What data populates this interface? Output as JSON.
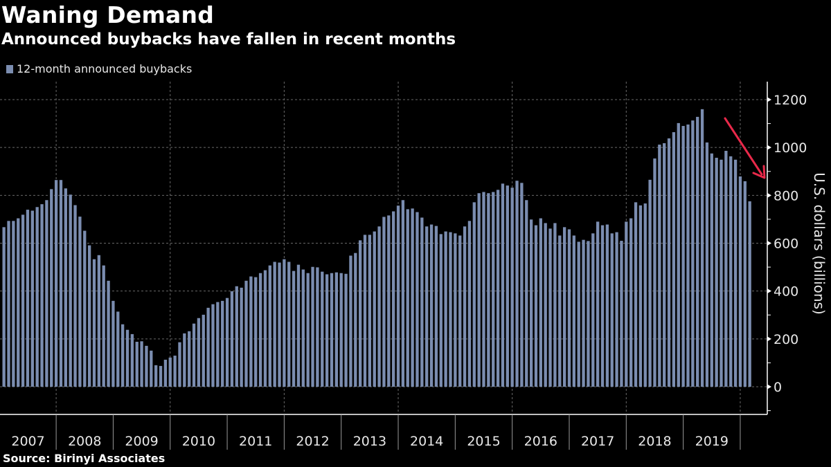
{
  "header": {
    "title": "Waning Demand",
    "subtitle": "Announced buybacks have fallen in recent months"
  },
  "footer": {
    "source": "Source:  Birinyi Associates"
  },
  "colors": {
    "background": "#000000",
    "bar": "#7b8db0",
    "arrow": "#e8294a",
    "axis": "#ffffff",
    "grid": "#6a6a6a"
  },
  "chart_data": {
    "type": "bar",
    "title": "Waning Demand",
    "subtitle": "Announced buybacks have fallen in recent months",
    "xlabel": "",
    "ylabel": "U.S. dollars (billions)",
    "ylim": [
      0,
      1200
    ],
    "yticks": [
      0,
      200,
      400,
      600,
      800,
      1000,
      1200
    ],
    "y_axis_side": "right",
    "grid": true,
    "legend": {
      "placement": "top-left",
      "entries": [
        "12-month announced buybacks"
      ]
    },
    "frequency": "monthly",
    "start": "2007-02",
    "end": "2020-03",
    "year_labels": [
      "2007",
      "2008",
      "2009",
      "2010",
      "2011",
      "2012",
      "2013",
      "2014",
      "2015",
      "2016",
      "2017",
      "2018",
      "2019"
    ],
    "annotation": "red downward arrow pointing at recent decline",
    "series": [
      {
        "name": "12-month announced buybacks",
        "values": [
          667,
          693,
          693,
          704,
          719,
          740,
          736,
          751,
          763,
          780,
          826,
          864,
          864,
          829,
          803,
          759,
          711,
          652,
          591,
          533,
          550,
          507,
          443,
          359,
          314,
          261,
          238,
          220,
          188,
          190,
          171,
          151,
          90,
          87,
          113,
          122,
          130,
          186,
          223,
          232,
          264,
          287,
          301,
          330,
          345,
          354,
          359,
          371,
          399,
          420,
          414,
          443,
          461,
          458,
          475,
          487,
          507,
          522,
          519,
          533,
          522,
          484,
          510,
          490,
          475,
          501,
          499,
          481,
          470,
          475,
          478,
          475,
          472,
          548,
          559,
          612,
          635,
          635,
          649,
          670,
          710,
          716,
          733,
          757,
          780,
          742,
          745,
          730,
          707,
          670,
          678,
          672,
          638,
          649,
          646,
          641,
          632,
          670,
          693,
          771,
          809,
          814,
          809,
          814,
          823,
          849,
          841,
          832,
          861,
          852,
          780,
          699,
          675,
          704,
          684,
          661,
          684,
          632,
          667,
          658,
          632,
          606,
          614,
          609,
          641,
          690,
          675,
          678,
          641,
          646,
          610,
          690,
          704,
          771,
          758,
          766,
          865,
          954,
          1012,
          1018,
          1038,
          1064,
          1102,
          1090,
          1096,
          1113,
          1128,
          1160,
          1021,
          975,
          957,
          949,
          986,
          963,
          949,
          879,
          859,
          775
        ]
      }
    ]
  }
}
